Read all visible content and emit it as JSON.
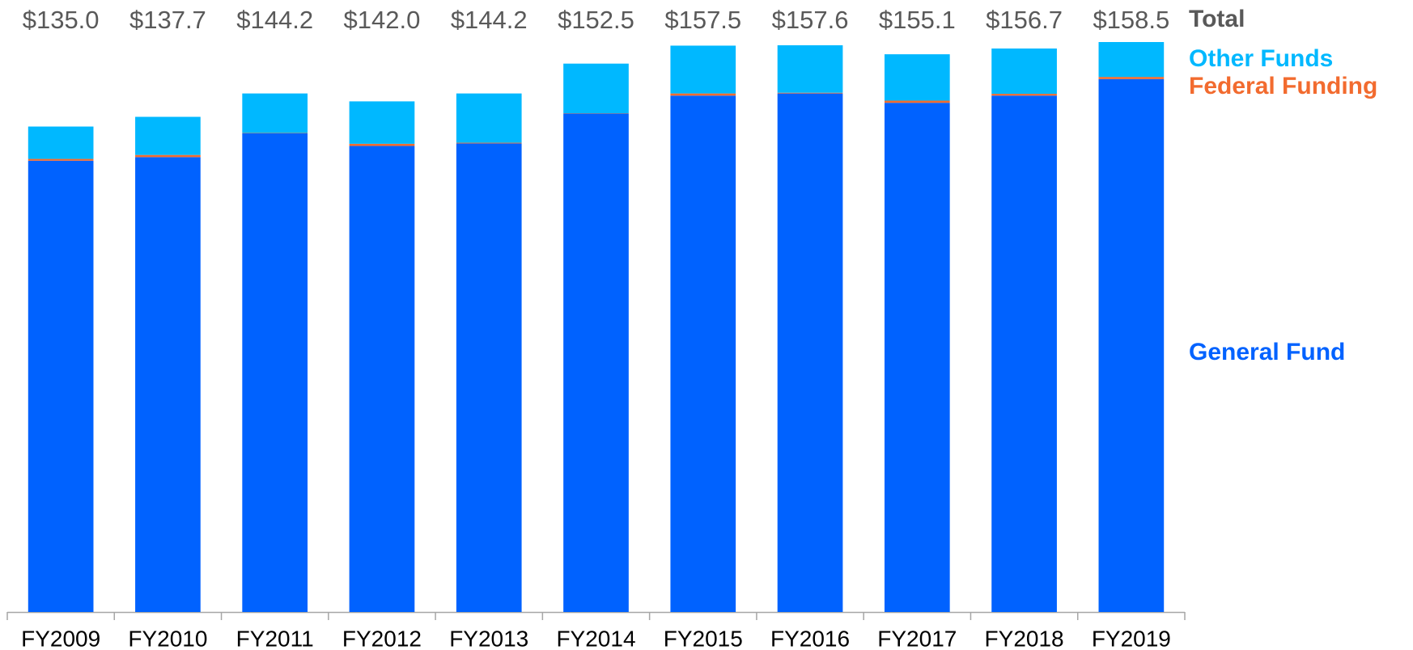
{
  "chart_data": {
    "type": "stacked-bar",
    "categories": [
      "FY2009",
      "FY2010",
      "FY2011",
      "FY2012",
      "FY2013",
      "FY2014",
      "FY2015",
      "FY2016",
      "FY2017",
      "FY2018",
      "FY2019"
    ],
    "series": [
      {
        "name": "General Fund",
        "color": "#0062ff",
        "values": [
          125.5,
          126.5,
          133.1,
          129.6,
          130.3,
          138.6,
          143.6,
          144.2,
          141.6,
          143.6,
          148.2
        ]
      },
      {
        "name": "Federal Funding",
        "color": "#f26b2f",
        "values": [
          0.5,
          0.6,
          0.1,
          0.6,
          0.2,
          0.1,
          0.6,
          0.2,
          0.6,
          0.5,
          0.6
        ]
      },
      {
        "name": "Other Funds",
        "color": "#00b8ff",
        "values": [
          9.0,
          10.6,
          11.0,
          11.8,
          13.7,
          13.8,
          13.3,
          13.2,
          12.9,
          12.6,
          9.7
        ]
      }
    ],
    "totals": {
      "name": "Total",
      "color": "#595959",
      "values": [
        135.0,
        137.7,
        144.2,
        142.0,
        144.2,
        152.5,
        157.5,
        157.6,
        155.1,
        156.7,
        158.5
      ],
      "value_labels": [
        "$135.0",
        "$137.7",
        "$144.2",
        "$142.0",
        "$144.2",
        "$152.5",
        "$157.5",
        "$157.6",
        "$155.1",
        "$156.7",
        "$158.5"
      ]
    }
  }
}
